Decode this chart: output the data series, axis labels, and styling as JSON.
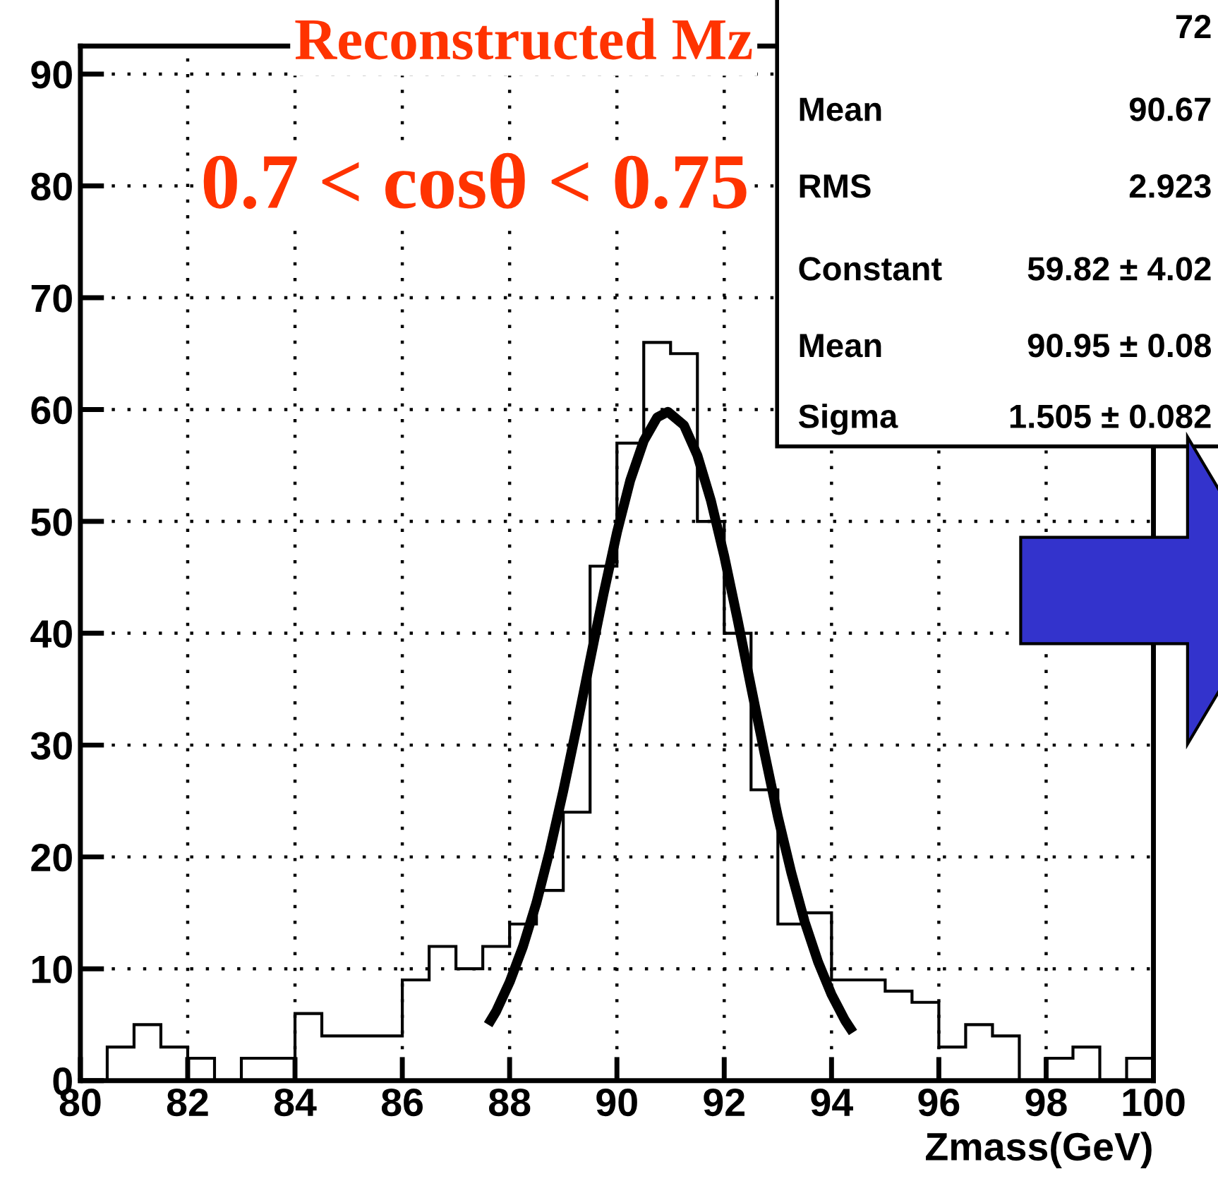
{
  "chart_data": {
    "type": "histogram",
    "title": "Reconstructed Mz",
    "subtitle": "0.7 < cosθ < 0.75",
    "xlabel": "Zmass(GeV)",
    "bins": [
      80,
      80.5,
      81,
      81.5,
      82,
      82.5,
      83,
      83.5,
      84,
      84.5,
      85,
      85.5,
      86,
      86.5,
      87,
      87.5,
      88,
      88.5,
      89,
      89.5,
      90,
      90.5,
      91,
      91.5,
      92,
      92.5,
      93,
      93.5,
      94,
      94.5,
      95,
      95.5,
      96,
      96.5,
      97,
      97.5,
      98,
      98.5,
      99,
      99.5,
      100
    ],
    "values": [
      0,
      3,
      5,
      3,
      2,
      0,
      2,
      2,
      6,
      4,
      4,
      4,
      9,
      12,
      10,
      12,
      14,
      17,
      24,
      46,
      57,
      66,
      65,
      50,
      40,
      26,
      14,
      15,
      9,
      9,
      8,
      7,
      3,
      5,
      4,
      0,
      2,
      3,
      0,
      2
    ],
    "color": "#000000",
    "series": [
      {
        "type": "line",
        "color": "#000000",
        "x": [
          87.6,
          87.75,
          88,
          88.25,
          88.5,
          88.75,
          89,
          89.25,
          89.5,
          89.75,
          90,
          90.25,
          90.5,
          90.75,
          90.95,
          91.25,
          91.5,
          91.75,
          92,
          92.25,
          92.5,
          92.75,
          93,
          93.25,
          93.5,
          93.75,
          94,
          94.25,
          94.4
        ],
        "values": [
          5.0,
          6.2,
          8.8,
          12.0,
          15.9,
          20.6,
          25.9,
          31.6,
          37.6,
          43.5,
          49.0,
          53.7,
          57.2,
          59.3,
          59.8,
          58.6,
          55.9,
          51.9,
          46.9,
          41.2,
          35.2,
          29.3,
          23.6,
          18.6,
          14.2,
          10.6,
          7.7,
          5.4,
          4.3
        ]
      }
    ],
    "xlim": [
      80,
      100
    ],
    "ylim": [
      0,
      92.5
    ],
    "xticks": [
      80,
      82,
      84,
      86,
      88,
      90,
      92,
      94,
      96,
      98,
      100
    ],
    "yticks": [
      0,
      10,
      20,
      30,
      40,
      50,
      60,
      70,
      80,
      90
    ],
    "grid": true,
    "line_style": "solid",
    "marker": "none",
    "annotations": [
      "72",
      "Mean",
      "90.67",
      "RMS",
      "2.923",
      "Constant",
      "59.82 ± 4.02",
      "Mean",
      "90.95 ± 0.08",
      "Sigma",
      "1.505 ± 0.082"
    ]
  }
}
